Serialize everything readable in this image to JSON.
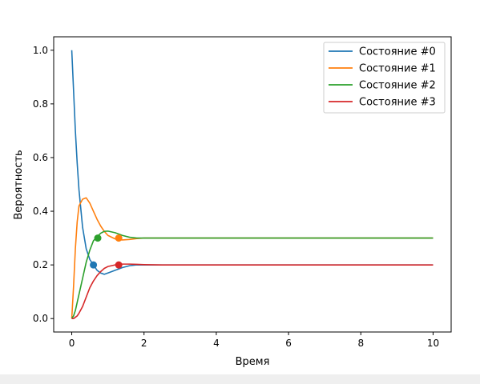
{
  "chart_data": {
    "type": "line",
    "xlabel": "Время",
    "ylabel": "Вероятность",
    "xlim": [
      -0.5,
      10.5
    ],
    "ylim": [
      -0.05,
      1.05
    ],
    "xticks": [
      0,
      2,
      4,
      6,
      8,
      10
    ],
    "xtick_labels": [
      "0",
      "2",
      "4",
      "6",
      "8",
      "10"
    ],
    "yticks": [
      0.0,
      0.2,
      0.4,
      0.6,
      0.8,
      1.0
    ],
    "ytick_labels": [
      "0.0",
      "0.2",
      "0.4",
      "0.6",
      "0.8",
      "1.0"
    ],
    "grid": false,
    "legend_position": "top-right",
    "x": [
      0,
      0.05,
      0.1,
      0.15,
      0.2,
      0.3,
      0.4,
      0.5,
      0.6,
      0.7,
      0.8,
      0.9,
      1.0,
      1.2,
      1.4,
      1.6,
      1.8,
      2.0,
      2.5,
      3.0,
      4.0,
      5.0,
      6.0,
      7.0,
      8.0,
      9.0,
      10.0
    ],
    "series": [
      {
        "name": "Состояние #0",
        "color": "#1f77b4",
        "values": [
          1.0,
          0.85,
          0.7,
          0.58,
          0.48,
          0.34,
          0.26,
          0.22,
          0.2,
          0.18,
          0.17,
          0.165,
          0.17,
          0.18,
          0.19,
          0.197,
          0.2,
          0.2,
          0.2,
          0.2,
          0.2,
          0.2,
          0.2,
          0.2,
          0.2,
          0.2,
          0.2
        ],
        "marker": {
          "x": 0.6,
          "y": 0.2
        }
      },
      {
        "name": "Состояние #1",
        "color": "#ff7f0e",
        "values": [
          0.0,
          0.12,
          0.26,
          0.36,
          0.42,
          0.445,
          0.45,
          0.43,
          0.4,
          0.37,
          0.345,
          0.325,
          0.31,
          0.297,
          0.293,
          0.295,
          0.298,
          0.3,
          0.3,
          0.3,
          0.3,
          0.3,
          0.3,
          0.3,
          0.3,
          0.3,
          0.3
        ],
        "marker": {
          "x": 1.3,
          "y": 0.3
        }
      },
      {
        "name": "Состояние #2",
        "color": "#2ca02c",
        "values": [
          0.0,
          0.01,
          0.03,
          0.06,
          0.09,
          0.15,
          0.21,
          0.255,
          0.29,
          0.305,
          0.318,
          0.325,
          0.326,
          0.32,
          0.31,
          0.303,
          0.3,
          0.3,
          0.3,
          0.3,
          0.3,
          0.3,
          0.3,
          0.3,
          0.3,
          0.3,
          0.3
        ],
        "marker": {
          "x": 0.72,
          "y": 0.3
        }
      },
      {
        "name": "Состояние #3",
        "color": "#d62728",
        "values": [
          0.0,
          0.0,
          0.005,
          0.01,
          0.02,
          0.045,
          0.08,
          0.115,
          0.14,
          0.16,
          0.175,
          0.187,
          0.194,
          0.2,
          0.203,
          0.203,
          0.202,
          0.201,
          0.2,
          0.2,
          0.2,
          0.2,
          0.2,
          0.2,
          0.2,
          0.2,
          0.2
        ],
        "marker": {
          "x": 1.3,
          "y": 0.2
        }
      }
    ]
  }
}
